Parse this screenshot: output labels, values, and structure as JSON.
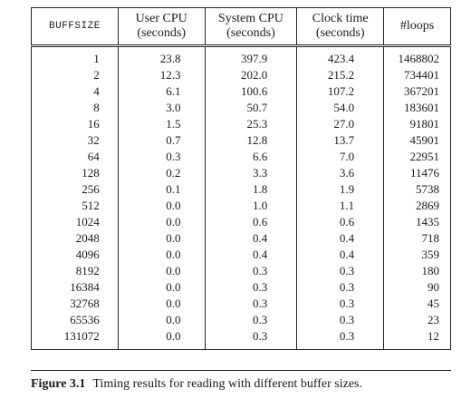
{
  "table": {
    "headers": {
      "buffsize": "BUFFSIZE",
      "user_cpu": [
        "User CPU",
        "(seconds)"
      ],
      "system_cpu": [
        "System CPU",
        "(seconds)"
      ],
      "clock_time": [
        "Clock time",
        "(seconds)"
      ],
      "loops": "#loops"
    },
    "rows": [
      {
        "buffsize": "1",
        "user": "23.8",
        "system": "397.9",
        "clock": "423.4",
        "loops": "1468802"
      },
      {
        "buffsize": "2",
        "user": "12.3",
        "system": "202.0",
        "clock": "215.2",
        "loops": "734401"
      },
      {
        "buffsize": "4",
        "user": "6.1",
        "system": "100.6",
        "clock": "107.2",
        "loops": "367201"
      },
      {
        "buffsize": "8",
        "user": "3.0",
        "system": "50.7",
        "clock": "54.0",
        "loops": "183601"
      },
      {
        "buffsize": "16",
        "user": "1.5",
        "system": "25.3",
        "clock": "27.0",
        "loops": "91801"
      },
      {
        "buffsize": "32",
        "user": "0.7",
        "system": "12.8",
        "clock": "13.7",
        "loops": "45901"
      },
      {
        "buffsize": "64",
        "user": "0.3",
        "system": "6.6",
        "clock": "7.0",
        "loops": "22951"
      },
      {
        "buffsize": "128",
        "user": "0.2",
        "system": "3.3",
        "clock": "3.6",
        "loops": "11476"
      },
      {
        "buffsize": "256",
        "user": "0.1",
        "system": "1.8",
        "clock": "1.9",
        "loops": "5738"
      },
      {
        "buffsize": "512",
        "user": "0.0",
        "system": "1.0",
        "clock": "1.1",
        "loops": "2869"
      },
      {
        "buffsize": "1024",
        "user": "0.0",
        "system": "0.6",
        "clock": "0.6",
        "loops": "1435"
      },
      {
        "buffsize": "2048",
        "user": "0.0",
        "system": "0.4",
        "clock": "0.4",
        "loops": "718"
      },
      {
        "buffsize": "4096",
        "user": "0.0",
        "system": "0.4",
        "clock": "0.4",
        "loops": "359"
      },
      {
        "buffsize": "8192",
        "user": "0.0",
        "system": "0.3",
        "clock": "0.3",
        "loops": "180"
      },
      {
        "buffsize": "16384",
        "user": "0.0",
        "system": "0.3",
        "clock": "0.3",
        "loops": "90"
      },
      {
        "buffsize": "32768",
        "user": "0.0",
        "system": "0.3",
        "clock": "0.3",
        "loops": "45"
      },
      {
        "buffsize": "65536",
        "user": "0.0",
        "system": "0.3",
        "clock": "0.3",
        "loops": "23"
      },
      {
        "buffsize": "131072",
        "user": "0.0",
        "system": "0.3",
        "clock": "0.3",
        "loops": "12"
      }
    ]
  },
  "caption": {
    "label": "Figure 3.1",
    "text": "Timing results for reading with different buffer sizes."
  }
}
